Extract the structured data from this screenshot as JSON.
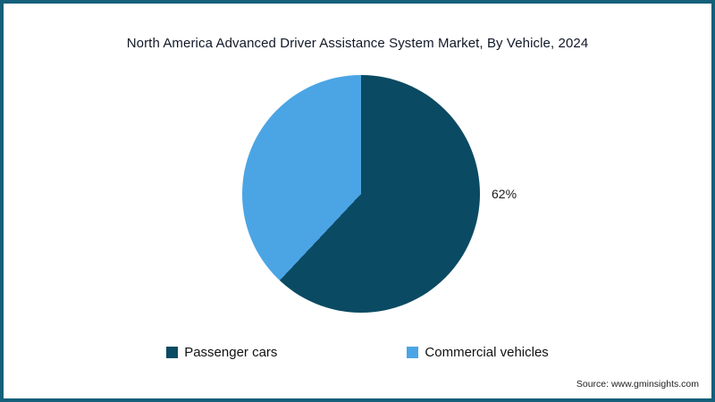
{
  "title": "North America Advanced Driver Assistance System Market, By Vehicle, 2024",
  "source_note": "Source: www.gminsights.com",
  "frame": {
    "border_color": "#15607a"
  },
  "chart_data": {
    "type": "pie",
    "title": "North America Advanced Driver Assistance System Market, By Vehicle, 2024",
    "start_angle_deg": 0,
    "direction": "clockwise",
    "legend_position": "bottom",
    "slices": [
      {
        "label": "Passenger cars",
        "value": 62,
        "data_label": "62%",
        "color": "#0b4a63"
      },
      {
        "label": "Commercial vehicles",
        "value": 38,
        "data_label": "",
        "color": "#4ba5e4"
      }
    ]
  }
}
